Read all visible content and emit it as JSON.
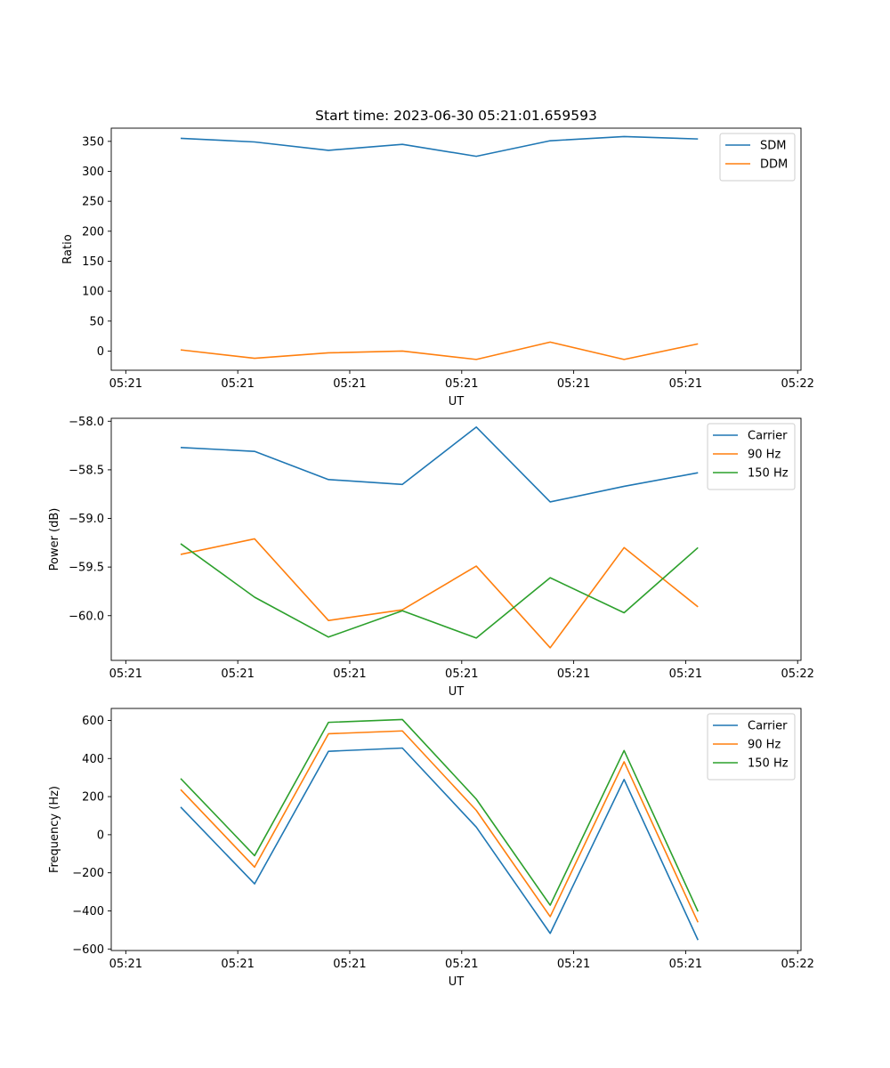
{
  "figure_title": "Start time: 2023-06-30 05:21:01.659593",
  "colors": {
    "blue": "#1f77b4",
    "orange": "#ff7f0e",
    "green": "#2ca02c"
  },
  "chart_data": [
    {
      "type": "line",
      "title": "Start time: 2023-06-30 05:21:01.659593",
      "xlabel": "UT",
      "ylabel": "Ratio",
      "x_tick_labels": [
        "05:21",
        "05:21",
        "05:21",
        "05:21",
        "05:21",
        "05:21",
        "05:22"
      ],
      "x": [
        0.49,
        1.15,
        1.81,
        2.47,
        3.13,
        3.79,
        4.45,
        5.11
      ],
      "xlim": [
        -0.13,
        6.03
      ],
      "ylim": [
        -32,
        372
      ],
      "yticks": [
        0,
        50,
        100,
        150,
        200,
        250,
        300,
        350
      ],
      "y_tick_labels": [
        "0",
        "50",
        "100",
        "150",
        "200",
        "250",
        "300",
        "350"
      ],
      "legend": "top-right",
      "grid": false,
      "series": [
        {
          "name": "SDM",
          "color": "#1f77b4",
          "values": [
            355,
            349,
            335,
            345,
            325,
            351,
            358,
            354
          ]
        },
        {
          "name": "DDM",
          "color": "#ff7f0e",
          "values": [
            2,
            -12,
            -3,
            0,
            -14,
            15,
            -14,
            12
          ]
        }
      ]
    },
    {
      "type": "line",
      "xlabel": "UT",
      "ylabel": "Power (dB)",
      "x_tick_labels": [
        "05:21",
        "05:21",
        "05:21",
        "05:21",
        "05:21",
        "05:21",
        "05:22"
      ],
      "x": [
        0.49,
        1.15,
        1.81,
        2.47,
        3.13,
        3.79,
        4.45,
        5.11
      ],
      "xlim": [
        -0.13,
        6.03
      ],
      "ylim": [
        -60.46,
        -57.97
      ],
      "yticks": [
        -58.0,
        -58.5,
        -59.0,
        -59.5,
        -60.0
      ],
      "y_tick_labels": [
        "−58.0",
        "−58.5",
        "−59.0",
        "−59.5",
        "−60.0"
      ],
      "legend": "top-right",
      "grid": false,
      "series": [
        {
          "name": "Carrier",
          "color": "#1f77b4",
          "values": [
            -58.27,
            -58.31,
            -58.6,
            -58.65,
            -58.06,
            -58.83,
            -58.67,
            -58.53
          ]
        },
        {
          "name": "90 Hz",
          "color": "#ff7f0e",
          "values": [
            -59.37,
            -59.21,
            -60.05,
            -59.94,
            -59.49,
            -60.33,
            -59.3,
            -59.91
          ]
        },
        {
          "name": "150 Hz",
          "color": "#2ca02c",
          "values": [
            -59.26,
            -59.81,
            -60.22,
            -59.95,
            -60.23,
            -59.61,
            -59.97,
            -59.3
          ]
        }
      ]
    },
    {
      "type": "line",
      "xlabel": "UT",
      "ylabel": "Frequency (Hz)",
      "x_tick_labels": [
        "05:21",
        "05:21",
        "05:21",
        "05:21",
        "05:21",
        "05:21",
        "05:22"
      ],
      "x": [
        0.49,
        1.15,
        1.81,
        2.47,
        3.13,
        3.79,
        4.45,
        5.11
      ],
      "xlim": [
        -0.13,
        6.03
      ],
      "ylim": [
        -608,
        663
      ],
      "yticks": [
        -600,
        -400,
        -200,
        0,
        200,
        400,
        600
      ],
      "y_tick_labels": [
        "−600",
        "−400",
        "−200",
        "0",
        "200",
        "400",
        "600"
      ],
      "legend": "top-right",
      "grid": false,
      "series": [
        {
          "name": "Carrier",
          "color": "#1f77b4",
          "values": [
            145,
            -258,
            438,
            455,
            40,
            -518,
            290,
            -553
          ]
        },
        {
          "name": "90 Hz",
          "color": "#ff7f0e",
          "values": [
            237,
            -170,
            530,
            545,
            128,
            -430,
            383,
            -460
          ]
        },
        {
          "name": "150 Hz",
          "color": "#2ca02c",
          "values": [
            295,
            -110,
            590,
            605,
            187,
            -370,
            442,
            -403
          ]
        }
      ]
    }
  ]
}
